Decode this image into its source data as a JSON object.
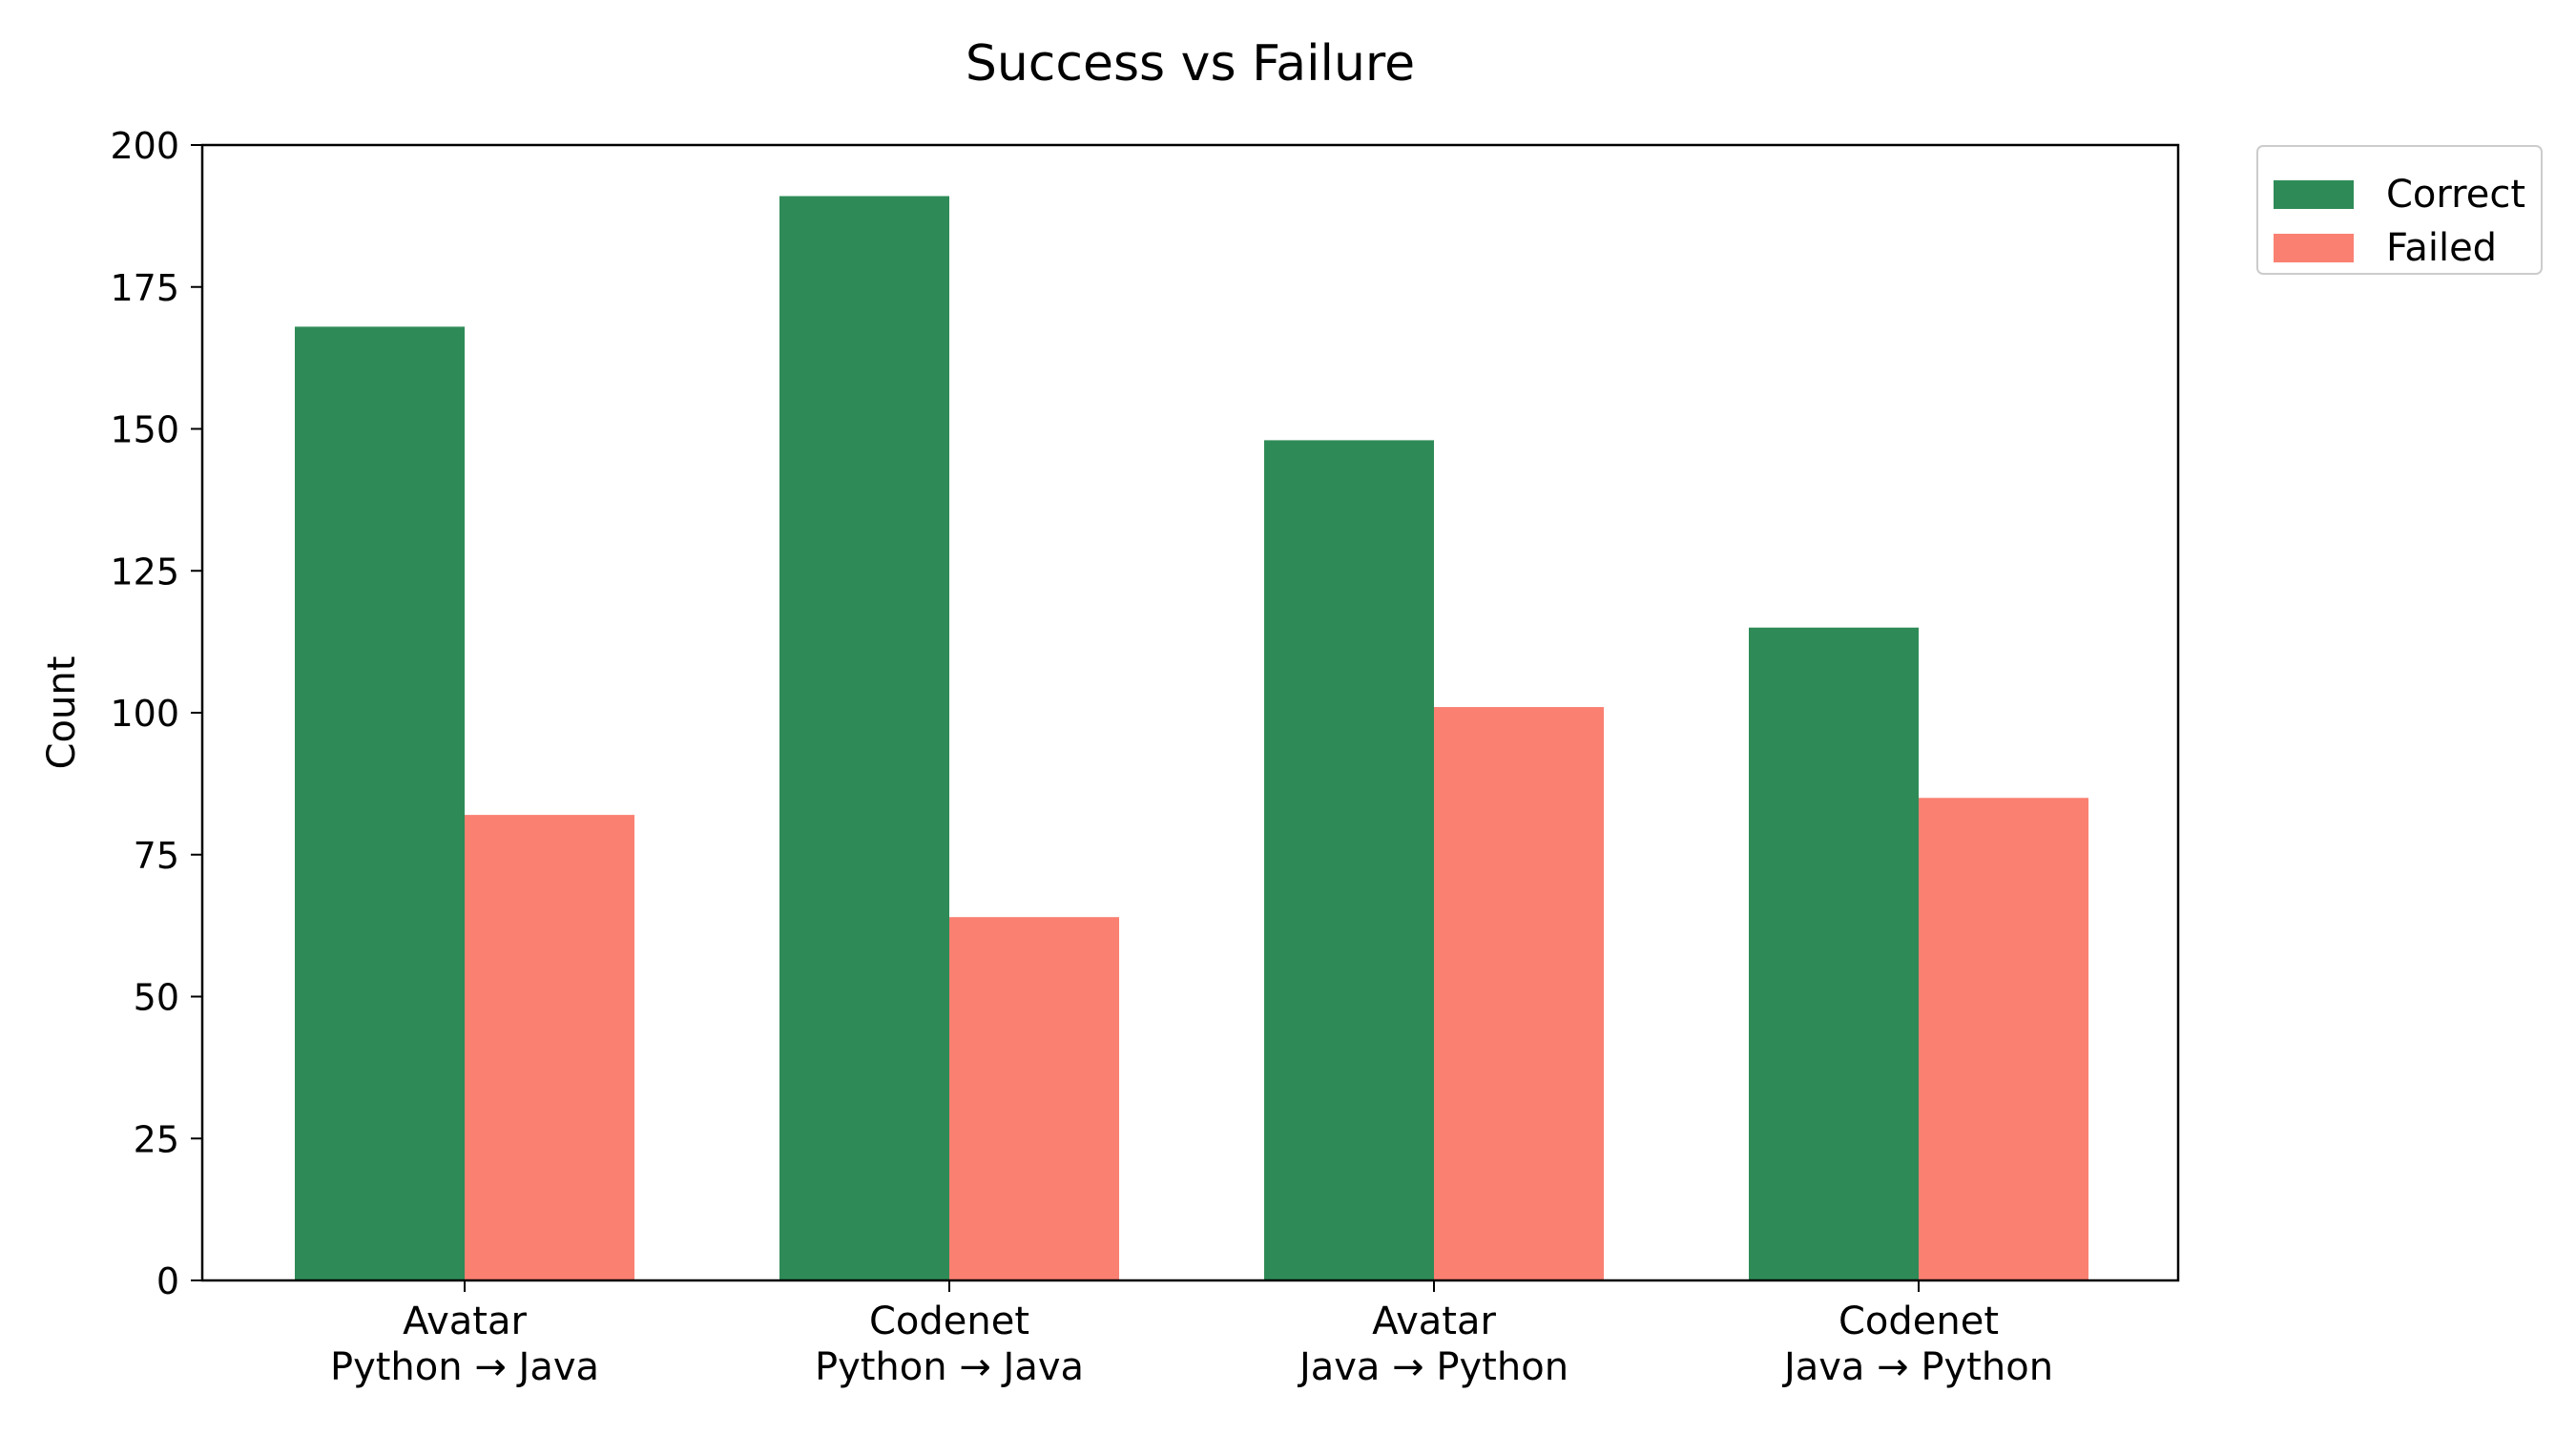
{
  "chart_data": {
    "type": "bar",
    "title": "Success vs Failure",
    "xlabel": "",
    "ylabel": "Count",
    "ylim": [
      0,
      200
    ],
    "yticks": [
      "0",
      "25",
      "50",
      "75",
      "100",
      "125",
      "150",
      "175",
      "200"
    ],
    "categories": [
      [
        "Avatar",
        "Python → Java"
      ],
      [
        "Codenet",
        "Python → Java"
      ],
      [
        "Avatar",
        "Java → Python"
      ],
      [
        "Codenet",
        "Java → Python"
      ]
    ],
    "series": [
      {
        "name": "Correct",
        "color": "#2e8b57",
        "values": [
          168,
          191,
          148,
          115
        ]
      },
      {
        "name": "Failed",
        "color": "#fa8072",
        "values": [
          82,
          64,
          101,
          85
        ]
      }
    ],
    "legend_position": "outside-top-right",
    "grid": false
  }
}
